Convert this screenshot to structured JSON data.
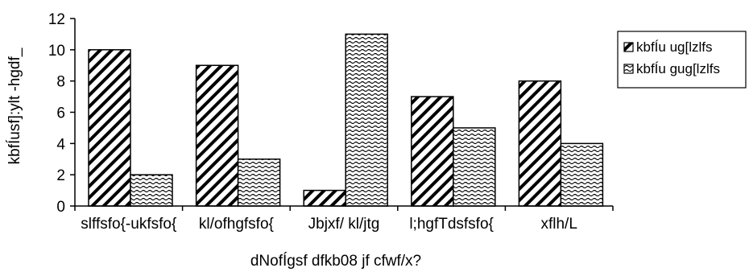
{
  "chart_data": {
    "type": "bar",
    "title": "",
    "xlabel": "dNofÍgsf dfkb08 jf cfwf/x?",
    "ylabel": "kbfÍusf]:ylt -hgdf_",
    "ylim": [
      0,
      12
    ],
    "yticks": [
      "0",
      "2",
      "4",
      "6",
      "8",
      "10",
      "12"
    ],
    "categories": [
      "slffsfo{-ukfsfo{",
      "kl/ofhgfsfo{",
      "Jbjxf/ kl/jtg",
      "l;hgfTdsfsfo{",
      "xflh/L"
    ],
    "series": [
      {
        "name": "kbfÍu ug[lzlfs",
        "values": [
          10,
          9,
          1,
          7,
          8
        ],
        "pattern": "diagonal-stripe"
      },
      {
        "name": "kbfÍu gug[lzlfs",
        "values": [
          2,
          3,
          11,
          5,
          4
        ],
        "pattern": "wave"
      }
    ],
    "grid": false,
    "legend_position": "right",
    "colors": {
      "bar_fill": "#ffffff",
      "pattern_ink": "#000000",
      "axis": "#000000"
    }
  }
}
